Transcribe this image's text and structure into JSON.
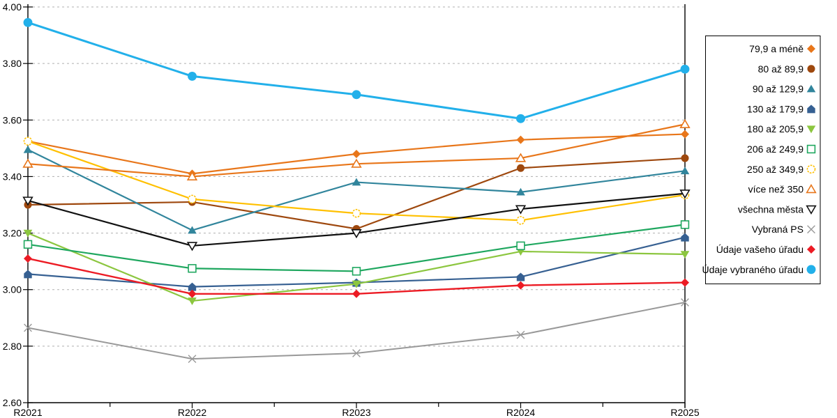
{
  "figure": {
    "background": "#FFFFFF",
    "gridline_color": "#AFAFAF",
    "axis_color": "#000000",
    "legend_border_color": "#000000"
  },
  "chart_data": {
    "type": "line",
    "title": "",
    "xlabel": "",
    "ylabel": "",
    "x_categories": [
      "R2021",
      "R2022",
      "R2023",
      "R2024",
      "R2025"
    ],
    "ylim": [
      2.6,
      4.0
    ],
    "y_tick_step": 0.2,
    "y_tick_labels": [
      "4.00",
      "3.80",
      "3.60",
      "3.40",
      "3.20",
      "3.00",
      "2.80",
      "2.60"
    ],
    "grid": {
      "horizontal": true,
      "style": "dashed"
    },
    "legend_position": "right",
    "series": [
      {
        "name": "79,9 a méně",
        "marker": "diamond",
        "color": "#E8761A",
        "line_width": 2.2,
        "marker_size": 6,
        "values": [
          3.525,
          3.41,
          3.48,
          3.53,
          3.55
        ]
      },
      {
        "name": "80 až 89,9",
        "marker": "circle",
        "color": "#9E480E",
        "line_width": 2.2,
        "marker_size": 6,
        "values": [
          3.3,
          3.31,
          3.215,
          3.43,
          3.465
        ]
      },
      {
        "name": "90 až 129,9",
        "marker": "triangle-up",
        "color": "#31859C",
        "line_width": 2.2,
        "marker_size": 6,
        "values": [
          3.495,
          3.21,
          3.38,
          3.345,
          3.42
        ]
      },
      {
        "name": "130 až 179,9",
        "marker": "pentagon",
        "color": "#366092",
        "line_width": 2.2,
        "marker_size": 6,
        "values": [
          3.055,
          3.01,
          3.025,
          3.045,
          3.185
        ]
      },
      {
        "name": "180 až 205,9",
        "marker": "triangle-down",
        "color": "#8CC63F",
        "line_width": 2.2,
        "marker_size": 6,
        "values": [
          3.2,
          2.96,
          3.02,
          3.135,
          3.125
        ]
      },
      {
        "name": "206 až 249,9",
        "marker": "square-open",
        "color": "#1FA75F",
        "line_width": 2.2,
        "marker_size": 6,
        "values": [
          3.16,
          3.075,
          3.065,
          3.155,
          3.23
        ]
      },
      {
        "name": "250 až 349,9",
        "marker": "circle-open",
        "color": "#FFC000",
        "line_width": 2.2,
        "marker_size": 6,
        "values": [
          3.525,
          3.32,
          3.27,
          3.245,
          3.335
        ]
      },
      {
        "name": "více než 350",
        "marker": "triangle-up-open",
        "color": "#E8761A",
        "line_width": 2.2,
        "marker_size": 6,
        "values": [
          3.445,
          3.4,
          3.445,
          3.465,
          3.585
        ]
      },
      {
        "name": "všechna města",
        "marker": "triangle-down-open",
        "color": "#111111",
        "line_width": 2.2,
        "marker_size": 6,
        "values": [
          3.315,
          3.155,
          3.2,
          3.285,
          3.34
        ]
      },
      {
        "name": "Vybraná PS",
        "marker": "x",
        "color": "#999999",
        "line_width": 2.0,
        "marker_size": 6,
        "values": [
          2.865,
          2.755,
          2.775,
          2.84,
          2.955
        ]
      },
      {
        "name": "Údaje vašeho úřadu",
        "marker": "diamond",
        "color": "#EC1B24",
        "line_width": 2.4,
        "marker_size": 6,
        "values": [
          3.11,
          2.985,
          2.985,
          3.015,
          3.025
        ]
      },
      {
        "name": "Údaje vybraného úřadu",
        "marker": "circle",
        "color": "#22B0EA",
        "line_width": 3.0,
        "marker_size": 7,
        "values": [
          3.945,
          3.755,
          3.69,
          3.605,
          3.78
        ]
      }
    ]
  }
}
